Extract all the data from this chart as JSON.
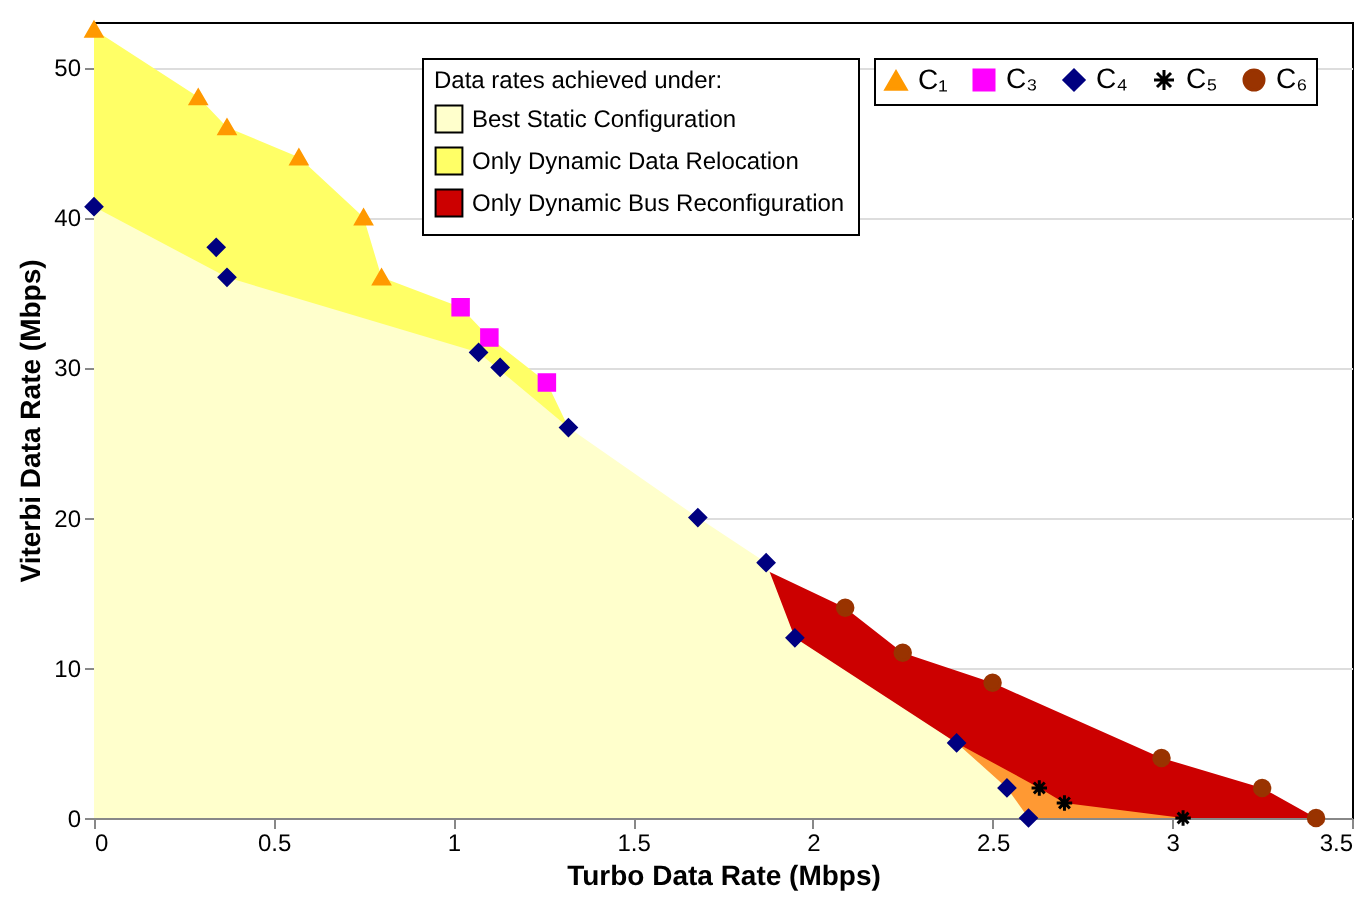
{
  "chart_data": {
    "type": "area",
    "xlabel": "Turbo Data Rate (Mbps)",
    "ylabel": "Viterbi Data Rate (Mbps)",
    "legend_title": "Data rates achieved under:",
    "xlim": [
      0,
      3.5
    ],
    "ylim": [
      0,
      53
    ],
    "xticks": [
      0,
      0.5,
      1,
      1.5,
      2,
      2.5,
      3,
      3.5
    ],
    "yticks": [
      0,
      10,
      20,
      30,
      40,
      50
    ],
    "grid": "y",
    "legend": "top right",
    "series": [
      {
        "name": "Only Dynamic Bus Reconfiguration",
        "color": "#cc0000",
        "x": [
          1.87,
          2.09,
          2.25,
          2.5,
          2.97,
          3.25,
          3.4
        ],
        "values": [
          16.5,
          14,
          11,
          9,
          4,
          2,
          0
        ]
      },
      {
        "color": "#ff9933",
        "x": [
          2.4,
          2.63,
          2.7,
          3.03
        ],
        "values": [
          5,
          2,
          1,
          0
        ]
      },
      {
        "name": "Only Dynamic Data Relocation",
        "color": "#ffff66",
        "x": [
          0,
          0.29,
          0.37,
          0.57,
          0.75,
          0.8,
          1.02,
          1.1,
          1.26,
          1.32
        ],
        "values": [
          52.5,
          48,
          46,
          44,
          40,
          36,
          34,
          32,
          29,
          26
        ]
      },
      {
        "name": "Best Static Configuration",
        "color": "#ffffcc",
        "x": [
          0,
          0.37,
          1.07,
          1.32,
          1.68,
          1.87,
          1.95,
          2.4,
          2.54,
          2.6
        ],
        "values": [
          40.7,
          36,
          31,
          26,
          20,
          17,
          12,
          5,
          2,
          0
        ]
      },
      {
        "type": "scatter",
        "name": "C₁",
        "color": "#ff9900",
        "marker": "triangle",
        "x": [
          0,
          0.29,
          0.37,
          0.57,
          0.75,
          0.8
        ],
        "values": [
          52.5,
          48,
          46,
          44,
          40,
          36
        ]
      },
      {
        "type": "scatter",
        "name": "C₃",
        "color": "#ff00ff",
        "marker": "square",
        "x": [
          1.02,
          1.1,
          1.26
        ],
        "values": [
          34,
          32,
          29
        ]
      },
      {
        "type": "scatter",
        "name": "C₄",
        "color": "#000080",
        "marker": "diamond",
        "x": [
          0,
          0.34,
          0.37,
          1.07,
          1.13,
          1.32,
          1.68,
          1.87,
          1.95,
          2.4,
          2.54,
          2.6
        ],
        "values": [
          40.7,
          38,
          36,
          31,
          30,
          26,
          20,
          17,
          12,
          5,
          2,
          0
        ]
      },
      {
        "type": "scatter",
        "name": "C₅",
        "color": "#000000",
        "marker": "cross",
        "x": [
          2.63,
          2.7,
          3.03
        ],
        "values": [
          2,
          1,
          0
        ]
      },
      {
        "type": "scatter",
        "name": "C₆",
        "color": "#993300",
        "marker": "circle",
        "x": [
          2.09,
          2.25,
          2.5,
          2.97,
          3.25,
          3.4
        ],
        "values": [
          14,
          11,
          9,
          4,
          2,
          0
        ]
      }
    ]
  }
}
